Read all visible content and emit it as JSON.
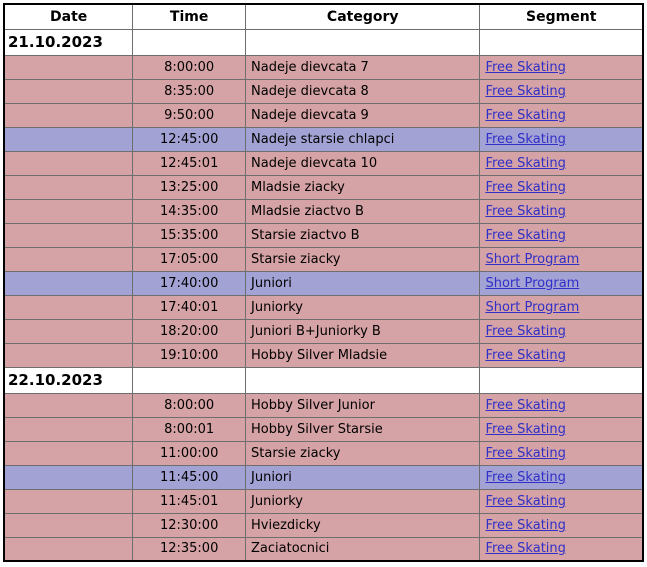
{
  "table": {
    "columns": [
      {
        "label": "Date"
      },
      {
        "label": "Time"
      },
      {
        "label": "Category"
      },
      {
        "label": "Segment"
      }
    ],
    "sections": [
      {
        "date": "21.10.2023",
        "rows": [
          {
            "time": "8:00:00",
            "category": "Nadeje dievcata 7",
            "segment": "Free Skating",
            "highlight": false
          },
          {
            "time": "8:35:00",
            "category": "Nadeje dievcata 8",
            "segment": "Free Skating",
            "highlight": false
          },
          {
            "time": "9:50:00",
            "category": "Nadeje dievcata 9",
            "segment": "Free Skating",
            "highlight": false
          },
          {
            "time": "12:45:00",
            "category": "Nadeje starsie chlapci",
            "segment": "Free Skating",
            "highlight": true
          },
          {
            "time": "12:45:01",
            "category": "Nadeje dievcata 10",
            "segment": "Free Skating",
            "highlight": false
          },
          {
            "time": "13:25:00",
            "category": "Mladsie ziacky",
            "segment": "Free Skating",
            "highlight": false
          },
          {
            "time": "14:35:00",
            "category": "Mladsie ziactvo B",
            "segment": "Free Skating",
            "highlight": false
          },
          {
            "time": "15:35:00",
            "category": "Starsie ziactvo B",
            "segment": "Free Skating",
            "highlight": false
          },
          {
            "time": "17:05:00",
            "category": "Starsie ziacky",
            "segment": "Short Program",
            "highlight": false
          },
          {
            "time": "17:40:00",
            "category": "Juniori",
            "segment": "Short Program",
            "highlight": true
          },
          {
            "time": "17:40:01",
            "category": "Juniorky",
            "segment": "Short Program",
            "highlight": false
          },
          {
            "time": "18:20:00",
            "category": "Juniori B+Juniorky B",
            "segment": "Free Skating",
            "highlight": false
          },
          {
            "time": "19:10:00",
            "category": "Hobby Silver Mladsie",
            "segment": "Free Skating",
            "highlight": false
          }
        ]
      },
      {
        "date": "22.10.2023",
        "rows": [
          {
            "time": "8:00:00",
            "category": "Hobby Silver Junior",
            "segment": "Free Skating",
            "highlight": false
          },
          {
            "time": "8:00:01",
            "category": "Hobby Silver Starsie",
            "segment": "Free Skating",
            "highlight": false
          },
          {
            "time": "11:00:00",
            "category": "Starsie ziacky",
            "segment": "Free Skating",
            "highlight": false
          },
          {
            "time": "11:45:00",
            "category": "Juniori",
            "segment": "Free Skating",
            "highlight": true
          },
          {
            "time": "11:45:01",
            "category": "Juniorky",
            "segment": "Free Skating",
            "highlight": false
          },
          {
            "time": "12:30:00",
            "category": "Hviezdicky",
            "segment": "Free Skating",
            "highlight": false
          },
          {
            "time": "12:35:00",
            "category": "Zaciatocnici",
            "segment": "Free Skating",
            "highlight": false
          }
        ]
      }
    ],
    "colors": {
      "row_default": "#d5a2a5",
      "row_highlight": "#a2a2d5",
      "link": "#3030c8",
      "border_inner": "#6e6e6e",
      "border_outer": "#000000"
    }
  }
}
